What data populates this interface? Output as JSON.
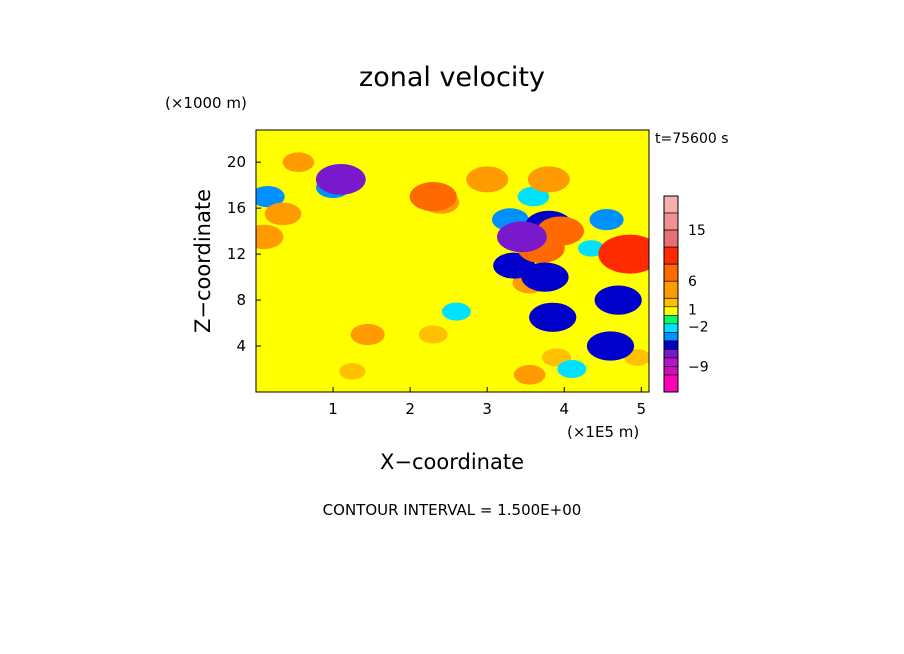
{
  "chart_data": {
    "type": "heatmap",
    "title": "zonal velocity",
    "xlabel": "X−coordinate",
    "ylabel": "Z−coordinate",
    "x_scale_note": "(×1E5 m)",
    "y_scale_note": "(×1000 m)",
    "time_label": "t=75600 s",
    "footer": "CONTOUR INTERVAL = 1.500E+00",
    "x_range": [
      0,
      5.1
    ],
    "y_range": [
      0,
      22.8
    ],
    "x_ticks": [
      1,
      2,
      3,
      4,
      5
    ],
    "x_tick_labels": [
      "1",
      "2",
      "3",
      "4",
      "5"
    ],
    "y_ticks": [
      4,
      8,
      12,
      16,
      20
    ],
    "y_tick_labels": [
      "4",
      "8",
      "12",
      "16",
      "20"
    ],
    "contour_interval": 1.5,
    "colorbar": {
      "label_values": [
        15,
        6,
        1,
        -2,
        -9
      ],
      "label_texts": [
        "15",
        "6",
        "1",
        "−2",
        "−9"
      ],
      "bands": [
        {
          "min": 18.0,
          "max": 21.0,
          "color": "#f6b0b0"
        },
        {
          "min": 15.0,
          "max": 18.0,
          "color": "#f09090"
        },
        {
          "min": 12.0,
          "max": 15.0,
          "color": "#e87070"
        },
        {
          "min": 9.0,
          "max": 12.0,
          "color": "#ff2a00"
        },
        {
          "min": 6.0,
          "max": 9.0,
          "color": "#ff6a00"
        },
        {
          "min": 3.0,
          "max": 6.0,
          "color": "#ff9a00"
        },
        {
          "min": 1.5,
          "max": 3.0,
          "color": "#ffc000"
        },
        {
          "min": 0.0,
          "max": 1.5,
          "color": "#ffff00"
        },
        {
          "min": -1.5,
          "max": 0.0,
          "color": "#00ff66"
        },
        {
          "min": -3.0,
          "max": -1.5,
          "color": "#00e0ff"
        },
        {
          "min": -4.5,
          "max": -3.0,
          "color": "#0090ff"
        },
        {
          "min": -6.0,
          "max": -4.5,
          "color": "#0000cc"
        },
        {
          "min": -7.5,
          "max": -6.0,
          "color": "#7a18cc"
        },
        {
          "min": -9.0,
          "max": -7.5,
          "color": "#b414cc"
        },
        {
          "min": -10.5,
          "max": -9.0,
          "color": "#cc10b8"
        },
        {
          "min": -13.5,
          "max": -10.5,
          "color": "#ff00b4"
        }
      ]
    },
    "features": [
      {
        "x": 0.1,
        "z": 13.5,
        "value": 4.5
      },
      {
        "x": 0.15,
        "z": 17.0,
        "value": -3.5
      },
      {
        "x": 0.35,
        "z": 15.5,
        "value": 4.0
      },
      {
        "x": 0.55,
        "z": 20.0,
        "value": 3.0
      },
      {
        "x": 1.1,
        "z": 18.5,
        "value": -6.5
      },
      {
        "x": 1.0,
        "z": 17.8,
        "value": -3.5
      },
      {
        "x": 1.3,
        "z": 13.0,
        "value": 1.0
      },
      {
        "x": 0.5,
        "z": 9.5,
        "value": 1.0
      },
      {
        "x": 0.7,
        "z": 3.5,
        "value": 1.0
      },
      {
        "x": 1.25,
        "z": 1.8,
        "value": 2.0
      },
      {
        "x": 1.45,
        "z": 5.0,
        "value": 3.5
      },
      {
        "x": 2.3,
        "z": 17.0,
        "value": 6.0
      },
      {
        "x": 2.4,
        "z": 16.5,
        "value": 4.0
      },
      {
        "x": 2.0,
        "z": 12.0,
        "value": 1.0
      },
      {
        "x": 2.3,
        "z": 5.0,
        "value": 2.5
      },
      {
        "x": 2.2,
        "z": 1.5,
        "value": 1.0
      },
      {
        "x": 2.6,
        "z": 7.0,
        "value": -2.5
      },
      {
        "x": 3.0,
        "z": 18.5,
        "value": 5.0
      },
      {
        "x": 3.3,
        "z": 15.0,
        "value": -4.0
      },
      {
        "x": 3.45,
        "z": 13.5,
        "value": -6.5
      },
      {
        "x": 3.35,
        "z": 11.0,
        "value": -5.0
      },
      {
        "x": 3.6,
        "z": 17.0,
        "value": -3.0
      },
      {
        "x": 3.55,
        "z": 9.5,
        "value": 3.5
      },
      {
        "x": 3.7,
        "z": 12.5,
        "value": 6.0
      },
      {
        "x": 3.8,
        "z": 14.5,
        "value": -6.0
      },
      {
        "x": 3.75,
        "z": 10.0,
        "value": -6.0
      },
      {
        "x": 3.85,
        "z": 6.5,
        "value": -6.0
      },
      {
        "x": 3.8,
        "z": 18.5,
        "value": 5.0
      },
      {
        "x": 3.95,
        "z": 14.0,
        "value": 6.0
      },
      {
        "x": 3.9,
        "z": 3.0,
        "value": 2.5
      },
      {
        "x": 4.15,
        "z": 16.5,
        "value": 1.0
      },
      {
        "x": 4.2,
        "z": 9.0,
        "value": 1.0
      },
      {
        "x": 4.1,
        "z": 2.0,
        "value": -2.5
      },
      {
        "x": 4.35,
        "z": 12.5,
        "value": -2.0
      },
      {
        "x": 4.55,
        "z": 15.0,
        "value": -3.5
      },
      {
        "x": 4.7,
        "z": 8.0,
        "value": -6.0
      },
      {
        "x": 4.6,
        "z": 4.0,
        "value": -6.0
      },
      {
        "x": 4.85,
        "z": 12.0,
        "value": 9.5
      },
      {
        "x": 4.9,
        "z": 17.5,
        "value": 1.0
      },
      {
        "x": 4.95,
        "z": 3.0,
        "value": 2.0
      },
      {
        "x": 3.55,
        "z": 1.5,
        "value": 3.0
      }
    ]
  }
}
